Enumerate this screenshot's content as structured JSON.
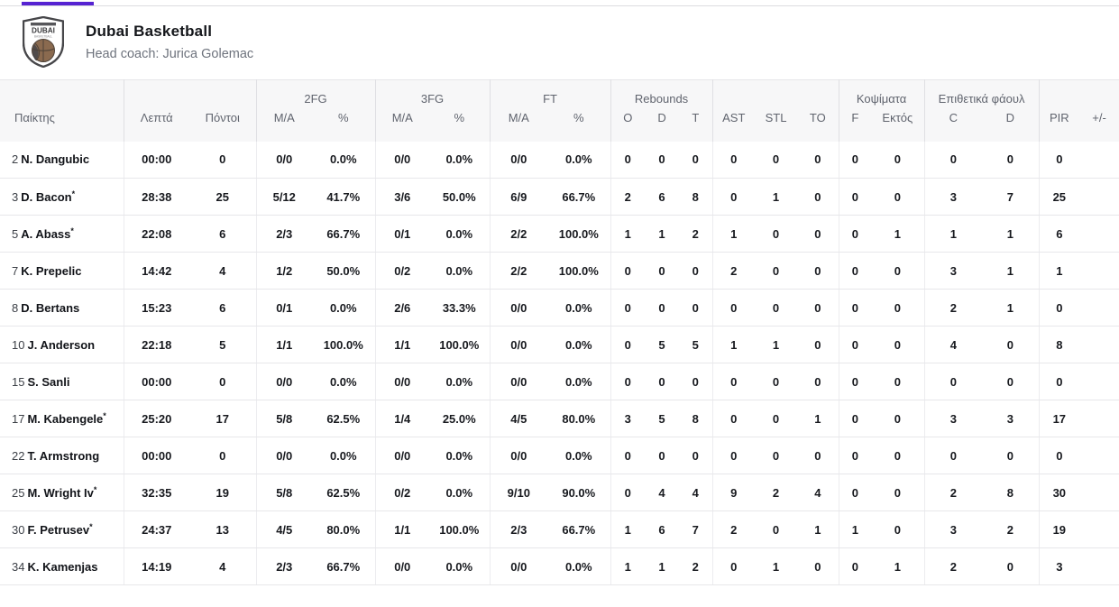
{
  "tab_bar": {
    "active_color": "#5623d2"
  },
  "team_header": {
    "title": "Dubai Basketball",
    "coach": "Head coach: Jurica Golemac",
    "logo_text": "DUBAI",
    "logo_subtext": "BASKETBALL"
  },
  "table": {
    "groups": [
      {
        "label": "",
        "span": 1
      },
      {
        "label": "",
        "span": 2
      },
      {
        "label": "2FG",
        "span": 2
      },
      {
        "label": "3FG",
        "span": 2
      },
      {
        "label": "FT",
        "span": 2
      },
      {
        "label": "Rebounds",
        "span": 3
      },
      {
        "label": "",
        "span": 3
      },
      {
        "label": "Κοψίματα",
        "span": 2
      },
      {
        "label": "Επιθετικά φάουλ",
        "span": 2
      },
      {
        "label": "",
        "span": 2
      }
    ],
    "columns": [
      "Παίκτης",
      "Λεπτά",
      "Πόντοι",
      "M/A",
      "%",
      "M/A",
      "%",
      "M/A",
      "%",
      "O",
      "D",
      "T",
      "AST",
      "STL",
      "TO",
      "F",
      "Εκτός",
      "C",
      "D",
      "PIR",
      "+/-"
    ],
    "rows": [
      {
        "number": "2",
        "name": "N. Dangubic",
        "star": "",
        "stats": [
          "00:00",
          "0",
          "0/0",
          "0.0%",
          "0/0",
          "0.0%",
          "0/0",
          "0.0%",
          "0",
          "0",
          "0",
          "0",
          "0",
          "0",
          "0",
          "0",
          "0",
          "0",
          "0",
          ""
        ]
      },
      {
        "number": "3",
        "name": "D. Bacon",
        "star": "*",
        "stats": [
          "28:38",
          "25",
          "5/12",
          "41.7%",
          "3/6",
          "50.0%",
          "6/9",
          "66.7%",
          "2",
          "6",
          "8",
          "0",
          "1",
          "0",
          "0",
          "0",
          "3",
          "7",
          "25",
          ""
        ]
      },
      {
        "number": "5",
        "name": "A. Abass",
        "star": "*",
        "stats": [
          "22:08",
          "6",
          "2/3",
          "66.7%",
          "0/1",
          "0.0%",
          "2/2",
          "100.0%",
          "1",
          "1",
          "2",
          "1",
          "0",
          "0",
          "0",
          "1",
          "1",
          "1",
          "6",
          ""
        ]
      },
      {
        "number": "7",
        "name": "K. Prepelic",
        "star": "",
        "stats": [
          "14:42",
          "4",
          "1/2",
          "50.0%",
          "0/2",
          "0.0%",
          "2/2",
          "100.0%",
          "0",
          "0",
          "0",
          "2",
          "0",
          "0",
          "0",
          "0",
          "3",
          "1",
          "1",
          ""
        ]
      },
      {
        "number": "8",
        "name": "D. Bertans",
        "star": "",
        "stats": [
          "15:23",
          "6",
          "0/1",
          "0.0%",
          "2/6",
          "33.3%",
          "0/0",
          "0.0%",
          "0",
          "0",
          "0",
          "0",
          "0",
          "0",
          "0",
          "0",
          "2",
          "1",
          "0",
          ""
        ]
      },
      {
        "number": "10",
        "name": "J. Anderson",
        "star": "",
        "stats": [
          "22:18",
          "5",
          "1/1",
          "100.0%",
          "1/1",
          "100.0%",
          "0/0",
          "0.0%",
          "0",
          "5",
          "5",
          "1",
          "1",
          "0",
          "0",
          "0",
          "4",
          "0",
          "8",
          ""
        ]
      },
      {
        "number": "15",
        "name": "S. Sanli",
        "star": "",
        "stats": [
          "00:00",
          "0",
          "0/0",
          "0.0%",
          "0/0",
          "0.0%",
          "0/0",
          "0.0%",
          "0",
          "0",
          "0",
          "0",
          "0",
          "0",
          "0",
          "0",
          "0",
          "0",
          "0",
          ""
        ]
      },
      {
        "number": "17",
        "name": "M. Kabengele",
        "star": "*",
        "stats": [
          "25:20",
          "17",
          "5/8",
          "62.5%",
          "1/4",
          "25.0%",
          "4/5",
          "80.0%",
          "3",
          "5",
          "8",
          "0",
          "0",
          "1",
          "0",
          "0",
          "3",
          "3",
          "17",
          ""
        ]
      },
      {
        "number": "22",
        "name": "T. Armstrong",
        "star": "",
        "stats": [
          "00:00",
          "0",
          "0/0",
          "0.0%",
          "0/0",
          "0.0%",
          "0/0",
          "0.0%",
          "0",
          "0",
          "0",
          "0",
          "0",
          "0",
          "0",
          "0",
          "0",
          "0",
          "0",
          ""
        ]
      },
      {
        "number": "25",
        "name": "M. Wright Iv",
        "star": "*",
        "stats": [
          "32:35",
          "19",
          "5/8",
          "62.5%",
          "0/2",
          "0.0%",
          "9/10",
          "90.0%",
          "0",
          "4",
          "4",
          "9",
          "2",
          "4",
          "0",
          "0",
          "2",
          "8",
          "30",
          ""
        ]
      },
      {
        "number": "30",
        "name": "F. Petrusev",
        "star": "*",
        "stats": [
          "24:37",
          "13",
          "4/5",
          "80.0%",
          "1/1",
          "100.0%",
          "2/3",
          "66.7%",
          "1",
          "6",
          "7",
          "2",
          "0",
          "1",
          "1",
          "0",
          "3",
          "2",
          "19",
          ""
        ]
      },
      {
        "number": "34",
        "name": "K. Kamenjas",
        "star": "",
        "stats": [
          "14:19",
          "4",
          "2/3",
          "66.7%",
          "0/0",
          "0.0%",
          "0/0",
          "0.0%",
          "1",
          "1",
          "2",
          "0",
          "1",
          "0",
          "0",
          "1",
          "2",
          "0",
          "3",
          ""
        ]
      }
    ]
  }
}
